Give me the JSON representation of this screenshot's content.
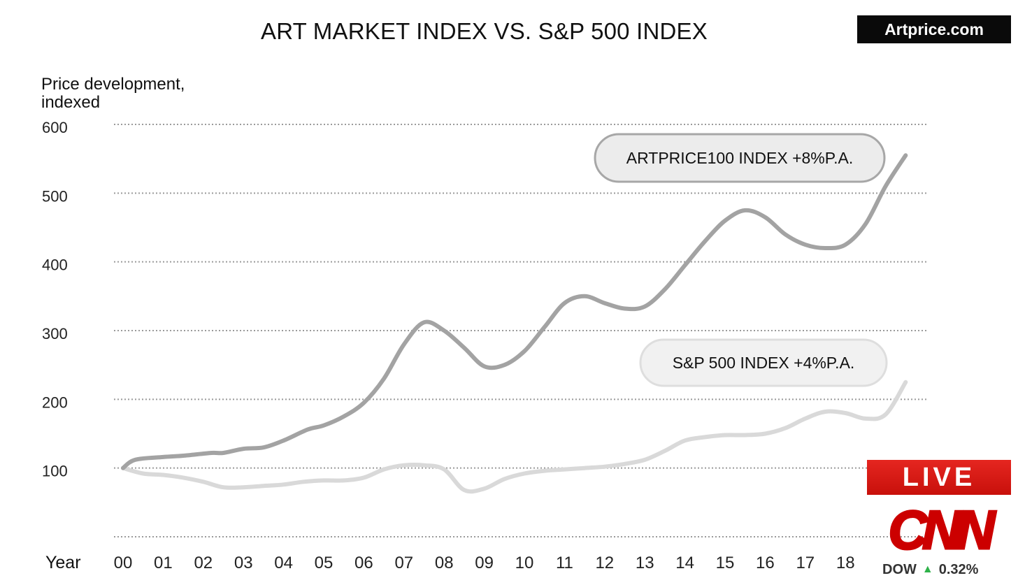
{
  "header": {
    "title": "ART MARKET INDEX VS. S&P 500 INDEX",
    "brand": "Artprice.com"
  },
  "overlay": {
    "live_label": "LIVE",
    "network_logo": "CNN",
    "ticker_name": "DOW",
    "ticker_change": "0.32%",
    "ticker_arrow": "▲"
  },
  "colors": {
    "art_series": "#a3a3a3",
    "sp_series": "#d9d9d9",
    "grid": "#9a9a9a",
    "live_red": "#d81a14",
    "ticker_up": "#2fb24a"
  },
  "chart_data": {
    "type": "line",
    "ylabel_lines": [
      "Price development,",
      "indexed"
    ],
    "xlabel": "Year",
    "ylim": [
      0,
      600
    ],
    "yticks": [
      600,
      500,
      400,
      300,
      200,
      100
    ],
    "grid": true,
    "x_ticks": [
      "00",
      "01",
      "02",
      "03",
      "04",
      "05",
      "06",
      "07",
      "08",
      "09",
      "10",
      "11",
      "12",
      "13",
      "14",
      "15",
      "16",
      "17",
      "18"
    ],
    "series": [
      {
        "name": "ARTPRICE100 INDEX +8%P.A.",
        "x": [
          2000,
          2000.3,
          2001,
          2001.5,
          2002.2,
          2002.5,
          2003,
          2003.5,
          2004,
          2004.6,
          2005,
          2005.5,
          2006,
          2006.5,
          2007,
          2007.5,
          2008,
          2008.5,
          2009,
          2009.5,
          2010,
          2010.5,
          2011,
          2011.5,
          2012,
          2012.5,
          2013,
          2013.5,
          2014,
          2014.5,
          2015,
          2015.5,
          2016,
          2016.5,
          2017,
          2017.5,
          2018,
          2018.5,
          2019,
          2019.5
        ],
        "y": [
          100,
          112,
          116,
          118,
          122,
          122,
          128,
          130,
          140,
          156,
          162,
          175,
          195,
          230,
          280,
          312,
          300,
          275,
          248,
          250,
          270,
          305,
          340,
          350,
          340,
          332,
          335,
          360,
          395,
          430,
          460,
          475,
          465,
          440,
          425,
          420,
          425,
          455,
          510,
          555
        ]
      },
      {
        "name": "S&P 500 INDEX +4%P.A.",
        "x": [
          2000,
          2000.5,
          2001,
          2001.5,
          2002,
          2002.5,
          2003,
          2003.5,
          2004,
          2004.5,
          2005,
          2005.5,
          2006,
          2006.5,
          2007,
          2007.5,
          2008,
          2008.5,
          2009,
          2009.5,
          2010,
          2010.5,
          2011,
          2011.5,
          2012,
          2012.5,
          2013,
          2013.5,
          2014,
          2014.5,
          2015,
          2015.5,
          2016,
          2016.5,
          2017,
          2017.5,
          2018,
          2018.5,
          2019,
          2019.5
        ],
        "y": [
          100,
          92,
          90,
          86,
          80,
          72,
          72,
          74,
          76,
          80,
          82,
          82,
          86,
          98,
          104,
          104,
          98,
          68,
          70,
          84,
          92,
          96,
          98,
          100,
          102,
          106,
          112,
          125,
          140,
          145,
          148,
          148,
          150,
          158,
          172,
          182,
          180,
          172,
          178,
          225
        ]
      }
    ],
    "annotations": [
      {
        "text": "ARTPRICE100 INDEX +8%P.A.",
        "series": 0
      },
      {
        "text": "S&P 500 INDEX +4%P.A.",
        "series": 1
      }
    ]
  }
}
